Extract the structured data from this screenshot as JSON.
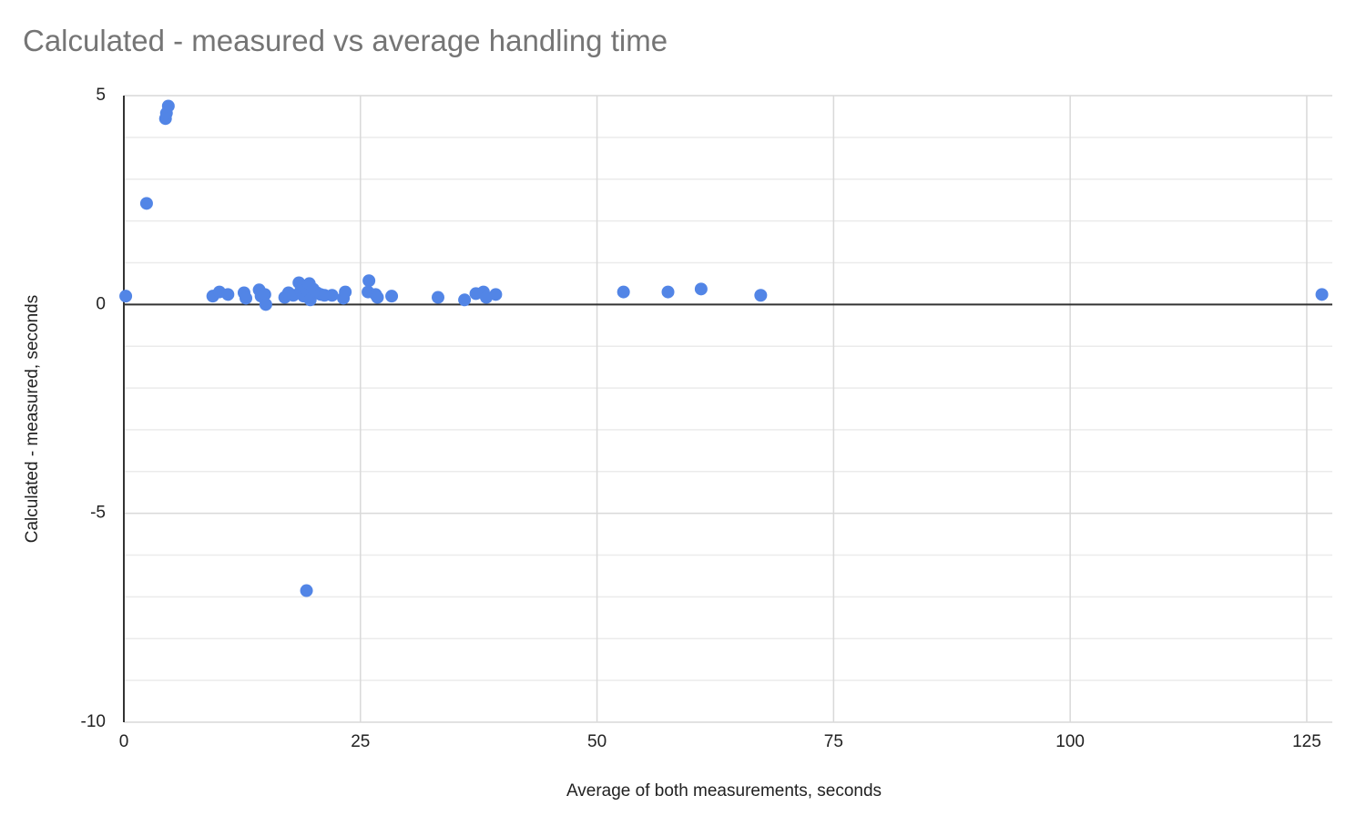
{
  "chart_data": {
    "type": "scatter",
    "title": "Calculated - measured vs average handling time",
    "xlabel": "Average of both measurements, seconds",
    "ylabel": "Calculated - measured, seconds",
    "color": "#5285e6",
    "grid": true,
    "xlim": [
      0,
      127.7
    ],
    "xticks": [
      0,
      25,
      50,
      75,
      100,
      125
    ],
    "ylim": [
      -10,
      5
    ],
    "yticks": [
      -10,
      -5,
      0,
      5
    ],
    "y_minor_ticks": [
      -9,
      -8,
      -7,
      -6,
      -4,
      -3,
      -2,
      -1,
      1,
      2,
      3,
      4
    ],
    "x": [
      0.2,
      2.4,
      4.4,
      4.5,
      4.7,
      9.4,
      10.1,
      11.0,
      12.7,
      12.9,
      14.3,
      14.5,
      14.9,
      15.0,
      17.0,
      17.4,
      17.9,
      18.5,
      18.7,
      19.0,
      19.4,
      19.6,
      19.7,
      20.0,
      20.4,
      20.8,
      21.2,
      22.0,
      23.2,
      23.4,
      25.9,
      25.8,
      26.6,
      26.8,
      28.3,
      19.3,
      33.2,
      36.0,
      37.2,
      38.0,
      38.3,
      39.3,
      52.8,
      57.5,
      61.0,
      67.3,
      126.6
    ],
    "values": [
      0.2,
      2.42,
      4.45,
      4.58,
      4.75,
      0.2,
      0.3,
      0.24,
      0.28,
      0.15,
      0.35,
      0.2,
      0.24,
      0.0,
      0.17,
      0.28,
      0.22,
      0.52,
      0.33,
      0.2,
      0.33,
      0.5,
      0.11,
      0.37,
      0.28,
      0.24,
      0.22,
      0.22,
      0.15,
      0.3,
      0.57,
      0.3,
      0.24,
      0.17,
      0.2,
      -6.85,
      0.17,
      0.11,
      0.26,
      0.3,
      0.17,
      0.24,
      0.3,
      0.3,
      0.37,
      0.22,
      0.24
    ]
  }
}
